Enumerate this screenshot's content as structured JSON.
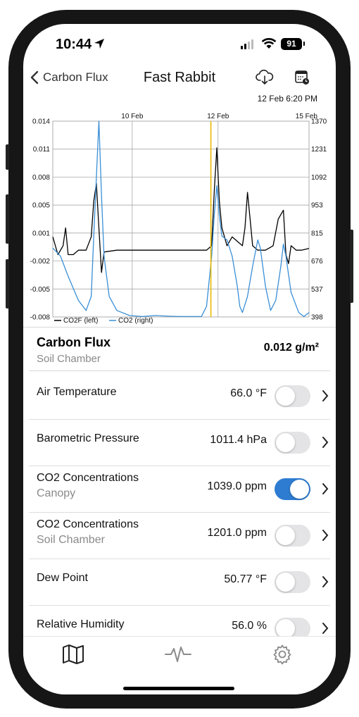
{
  "status": {
    "time": "10:44",
    "battery": "91"
  },
  "nav": {
    "back_label": "Carbon Flux",
    "title": "Fast Rabbit",
    "datetime": "12 Feb 6:20 PM"
  },
  "chart_data": {
    "type": "line",
    "x_ticks": [
      "10 Feb",
      "12 Feb",
      "15 Feb"
    ],
    "y_left_ticks": [
      "0.014",
      "0.011",
      "0.008",
      "0.005",
      "0.001",
      "-0.002",
      "-0.005",
      "-0.008"
    ],
    "y_right_ticks": [
      "1370",
      "1231",
      "1092",
      "953",
      "815",
      "676",
      "537",
      "398"
    ],
    "ylim_left": [
      -0.008,
      0.014
    ],
    "ylim_right": [
      398,
      1370
    ],
    "legend_position": "bottom-left",
    "colors": {
      "co2f": "#000000",
      "co2": "#3a8fd6",
      "cursor": "#e8b800",
      "grid": "#9a9a9a"
    },
    "series": [
      {
        "name": "CO2F (left)",
        "axis": "left",
        "points": [
          [
            0,
            0.001
          ],
          [
            0.02,
            -0.001
          ],
          [
            0.04,
            0.0
          ],
          [
            0.05,
            0.002
          ],
          [
            0.06,
            -0.001
          ],
          [
            0.08,
            -0.001
          ],
          [
            0.1,
            -0.0005
          ],
          [
            0.13,
            -0.0005
          ],
          [
            0.15,
            0.001
          ],
          [
            0.16,
            0.005
          ],
          [
            0.17,
            0.007
          ],
          [
            0.18,
            0.002
          ],
          [
            0.19,
            -0.003
          ],
          [
            0.2,
            -0.0007
          ],
          [
            0.25,
            -0.0005
          ],
          [
            0.3,
            -0.0005
          ],
          [
            0.35,
            -0.0005
          ],
          [
            0.4,
            -0.0005
          ],
          [
            0.45,
            -0.0005
          ],
          [
            0.5,
            -0.0005
          ],
          [
            0.55,
            -0.0005
          ],
          [
            0.6,
            -0.0005
          ],
          [
            0.62,
            0.0
          ],
          [
            0.63,
            0.006
          ],
          [
            0.64,
            0.011
          ],
          [
            0.65,
            0.005
          ],
          [
            0.66,
            0.002
          ],
          [
            0.68,
            0.0
          ],
          [
            0.7,
            0.001
          ],
          [
            0.72,
            0.0005
          ],
          [
            0.74,
            0.0
          ],
          [
            0.75,
            0.002
          ],
          [
            0.76,
            0.006
          ],
          [
            0.77,
            0.003
          ],
          [
            0.78,
            0.0
          ],
          [
            0.8,
            -0.0005
          ],
          [
            0.83,
            -0.0005
          ],
          [
            0.86,
            0.0
          ],
          [
            0.88,
            0.003
          ],
          [
            0.9,
            0.004
          ],
          [
            0.91,
            -0.001
          ],
          [
            0.92,
            -0.002
          ],
          [
            0.93,
            0.0
          ],
          [
            0.95,
            -0.0005
          ],
          [
            0.97,
            -0.0005
          ],
          [
            1.0,
            -0.0003
          ]
        ]
      },
      {
        "name": "CO2 (right)",
        "axis": "right",
        "points": [
          [
            0,
            740
          ],
          [
            0.03,
            700
          ],
          [
            0.06,
            600
          ],
          [
            0.1,
            480
          ],
          [
            0.13,
            430
          ],
          [
            0.15,
            500
          ],
          [
            0.16,
            800
          ],
          [
            0.18,
            1370
          ],
          [
            0.19,
            1000
          ],
          [
            0.2,
            700
          ],
          [
            0.22,
            500
          ],
          [
            0.25,
            430
          ],
          [
            0.3,
            405
          ],
          [
            0.35,
            400
          ],
          [
            0.4,
            405
          ],
          [
            0.45,
            402
          ],
          [
            0.5,
            400
          ],
          [
            0.55,
            400
          ],
          [
            0.58,
            400
          ],
          [
            0.6,
            450
          ],
          [
            0.62,
            700
          ],
          [
            0.63,
            900
          ],
          [
            0.64,
            1050
          ],
          [
            0.65,
            900
          ],
          [
            0.66,
            800
          ],
          [
            0.68,
            780
          ],
          [
            0.7,
            700
          ],
          [
            0.72,
            550
          ],
          [
            0.73,
            450
          ],
          [
            0.74,
            420
          ],
          [
            0.76,
            500
          ],
          [
            0.78,
            650
          ],
          [
            0.8,
            780
          ],
          [
            0.81,
            740
          ],
          [
            0.83,
            550
          ],
          [
            0.85,
            430
          ],
          [
            0.87,
            480
          ],
          [
            0.89,
            650
          ],
          [
            0.9,
            760
          ],
          [
            0.91,
            700
          ],
          [
            0.93,
            520
          ],
          [
            0.96,
            420
          ],
          [
            0.98,
            400
          ],
          [
            1.0,
            420
          ]
        ]
      }
    ],
    "cursor_x": 0.617
  },
  "summary": {
    "title": "Carbon Flux",
    "subtitle": "Soil Chamber",
    "value": "0.012 g/m²"
  },
  "rows": [
    {
      "name": "Air Temperature",
      "sub": "",
      "value": "66.0 °F",
      "on": false
    },
    {
      "name": "Barometric Pressure",
      "sub": "",
      "value": "1011.4 hPa",
      "on": false
    },
    {
      "name": "CO2 Concentrations",
      "sub": "Canopy",
      "value": "1039.0 ppm",
      "on": true
    },
    {
      "name": "CO2 Concentrations",
      "sub": "Soil Chamber",
      "value": "1201.0 ppm",
      "on": false
    },
    {
      "name": "Dew Point",
      "sub": "",
      "value": "50.77 °F",
      "on": false
    },
    {
      "name": "Relative Humidity",
      "sub": "",
      "value": "56.0 %",
      "on": false
    }
  ],
  "tabs": {
    "icons": [
      "map-icon",
      "activity-icon",
      "gear-icon"
    ]
  }
}
